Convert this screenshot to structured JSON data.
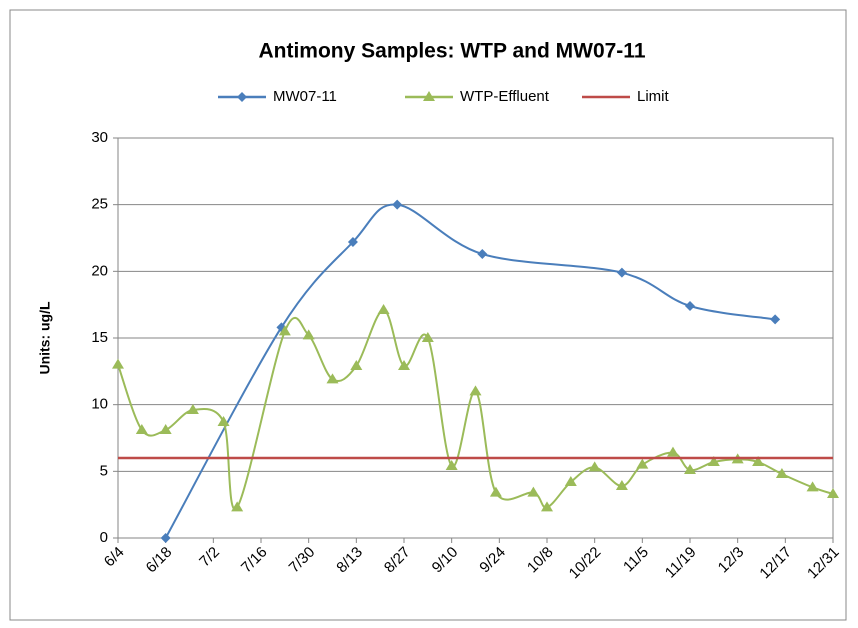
{
  "chart_data": {
    "type": "line",
    "title": "Antimony Samples: WTP and MW07-11",
    "y_label": "Units: ug/L",
    "xlim": [
      "6/4",
      "12/31"
    ],
    "xticks": [
      "6/4",
      "6/18",
      "7/2",
      "7/16",
      "7/30",
      "8/13",
      "8/27",
      "9/10",
      "9/24",
      "10/8",
      "10/22",
      "11/5",
      "11/19",
      "12/3",
      "12/17",
      "12/31"
    ],
    "ylim": [
      0,
      30
    ],
    "yticks": [
      0,
      5,
      10,
      15,
      20,
      25,
      30
    ],
    "grid": true,
    "legend": "top",
    "series": [
      {
        "name": "MW07-11",
        "color": "#4a7ebb",
        "marker": "diamond",
        "smooth": true,
        "x": [
          "6/18",
          "7/22",
          "8/12",
          "8/25",
          "9/19",
          "10/30",
          "11/19",
          "12/14"
        ],
        "values": [
          0,
          15.8,
          22.2,
          25,
          21.3,
          19.9,
          17.4,
          16.4
        ]
      },
      {
        "name": "WTP-Effluent",
        "color": "#9bbb59",
        "marker": "triangle",
        "smooth": true,
        "x": [
          "6/4",
          "6/11",
          "6/18",
          "6/26",
          "7/5",
          "7/9",
          "7/23",
          "7/30",
          "8/6",
          "8/13",
          "8/21",
          "8/27",
          "9/3",
          "9/10",
          "9/17",
          "9/23",
          "10/4",
          "10/8",
          "10/15",
          "10/22",
          "10/30",
          "11/5",
          "11/14",
          "11/19",
          "11/26",
          "12/3",
          "12/9",
          "12/16",
          "12/25",
          "12/31"
        ],
        "values": [
          13,
          8.1,
          8.1,
          9.6,
          8.7,
          2.3,
          15.5,
          15.2,
          11.9,
          12.9,
          17.1,
          12.9,
          15,
          5.4,
          11,
          3.4,
          3.4,
          2.3,
          4.2,
          5.3,
          3.9,
          5.5,
          6.4,
          5.1,
          5.7,
          5.9,
          5.7,
          4.8,
          3.8,
          3.3
        ]
      },
      {
        "name": "Limit",
        "color": "#be4b48",
        "marker": "none",
        "smooth": false,
        "x": [
          "6/4",
          "12/31"
        ],
        "values": [
          6,
          6
        ]
      }
    ]
  }
}
